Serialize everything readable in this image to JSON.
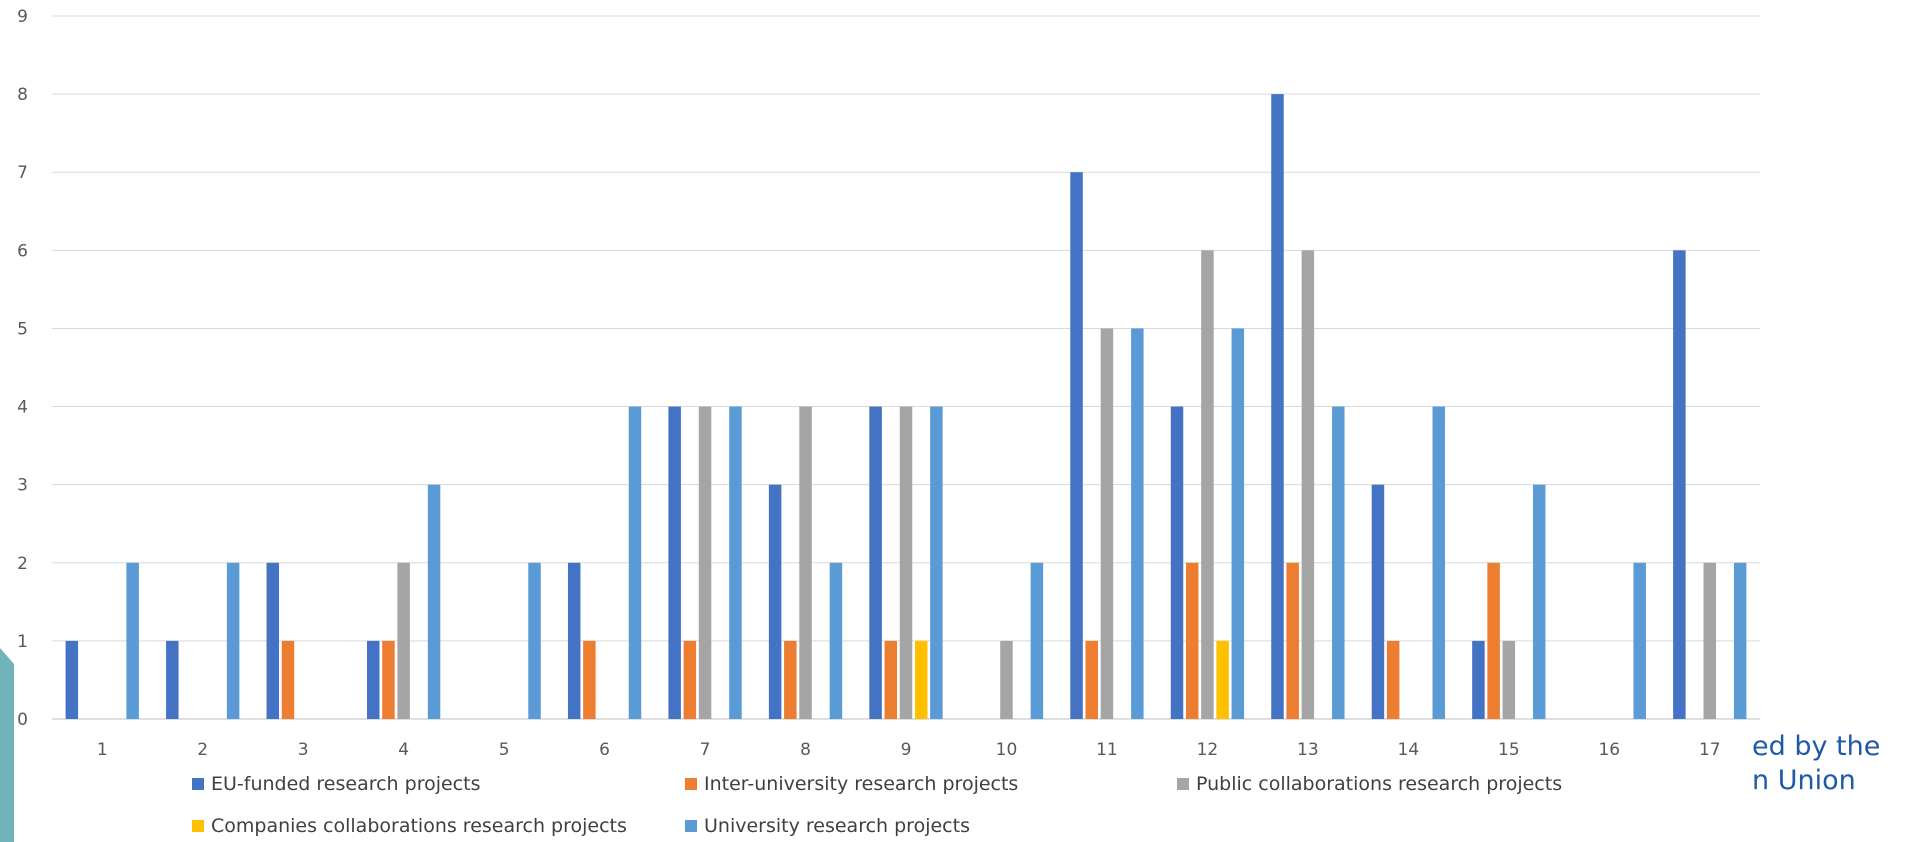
{
  "chart_data": {
    "type": "bar",
    "categories": [
      "1",
      "2",
      "3",
      "4",
      "5",
      "6",
      "7",
      "8",
      "9",
      "10",
      "11",
      "12",
      "13",
      "14",
      "15",
      "16",
      "17"
    ],
    "ylim": [
      0,
      9
    ],
    "yticks": [
      0,
      1,
      2,
      3,
      4,
      5,
      6,
      7,
      8,
      9
    ],
    "grid": true,
    "legend_position": "bottom",
    "series": [
      {
        "name": "EU-funded research projects",
        "color": "#4472C4",
        "values": [
          1,
          1,
          2,
          1,
          0,
          2,
          4,
          3,
          4,
          0,
          7,
          4,
          8,
          3,
          1,
          0,
          6
        ]
      },
      {
        "name": "Inter-university research projects",
        "color": "#ED7D31",
        "values": [
          0,
          0,
          1,
          1,
          0,
          1,
          1,
          1,
          1,
          0,
          1,
          2,
          2,
          1,
          2,
          0,
          0
        ]
      },
      {
        "name": "Public collaborations research projects",
        "color": "#A5A5A5",
        "values": [
          0,
          0,
          0,
          2,
          0,
          0,
          4,
          4,
          4,
          1,
          5,
          6,
          6,
          0,
          1,
          0,
          2
        ]
      },
      {
        "name": "Companies collaborations research projects",
        "color": "#FFC000",
        "values": [
          0,
          0,
          0,
          0,
          0,
          0,
          0,
          0,
          1,
          0,
          0,
          1,
          0,
          0,
          0,
          0,
          0
        ]
      },
      {
        "name": "University research projects",
        "color": "#5B9BD5",
        "values": [
          2,
          2,
          0,
          3,
          2,
          4,
          4,
          2,
          4,
          2,
          5,
          5,
          4,
          4,
          3,
          2,
          2
        ]
      }
    ]
  },
  "background_text": {
    "line1": "ed by the",
    "line2": "n Union"
  },
  "colors": {
    "accent_teal": "#70b3b8",
    "text_blue": "#1f5aa6"
  }
}
